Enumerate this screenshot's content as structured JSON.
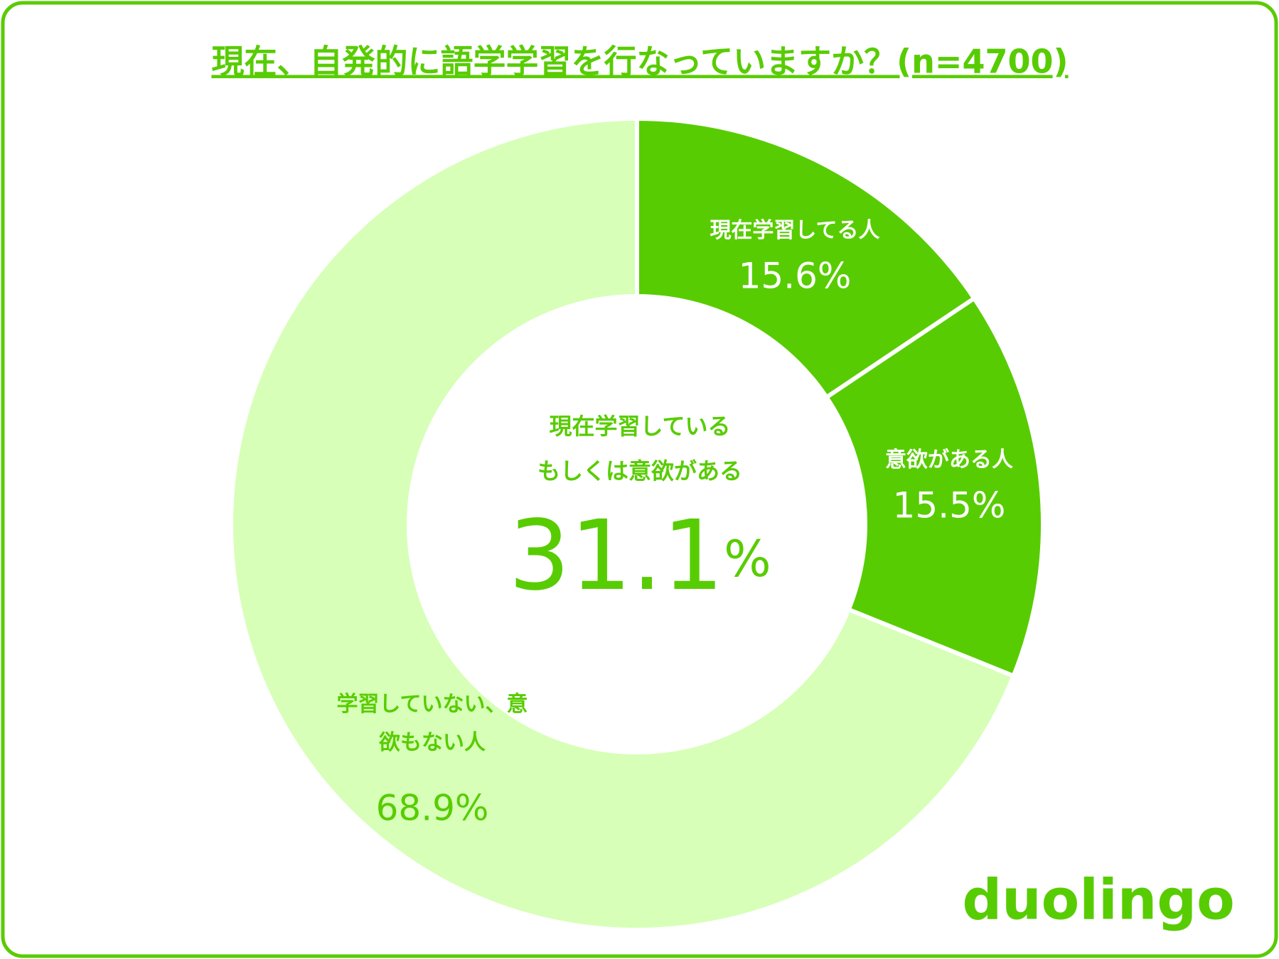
{
  "chart_data": {
    "type": "pie",
    "donut": true,
    "title": "現在、自発的に語学学習を行なっていますか？(n=4700)",
    "categories": [
      "現在学習してる人",
      "意欲がある人",
      "学習していない、意欲もない人"
    ],
    "values": [
      15.6,
      15.5,
      68.9
    ],
    "value_labels": [
      "15.6%",
      "15.5%",
      "68.9%"
    ],
    "colors": [
      "#58cc02",
      "#58cc02",
      "#d7ffb8"
    ],
    "label_colors": [
      "#ffffff",
      "#ffffff",
      "#58cc02"
    ],
    "center_label": [
      "現在学習している",
      "もしくは意欲がある"
    ],
    "center_value": 31.1,
    "center_unit": "%",
    "logo": "duolingo"
  }
}
